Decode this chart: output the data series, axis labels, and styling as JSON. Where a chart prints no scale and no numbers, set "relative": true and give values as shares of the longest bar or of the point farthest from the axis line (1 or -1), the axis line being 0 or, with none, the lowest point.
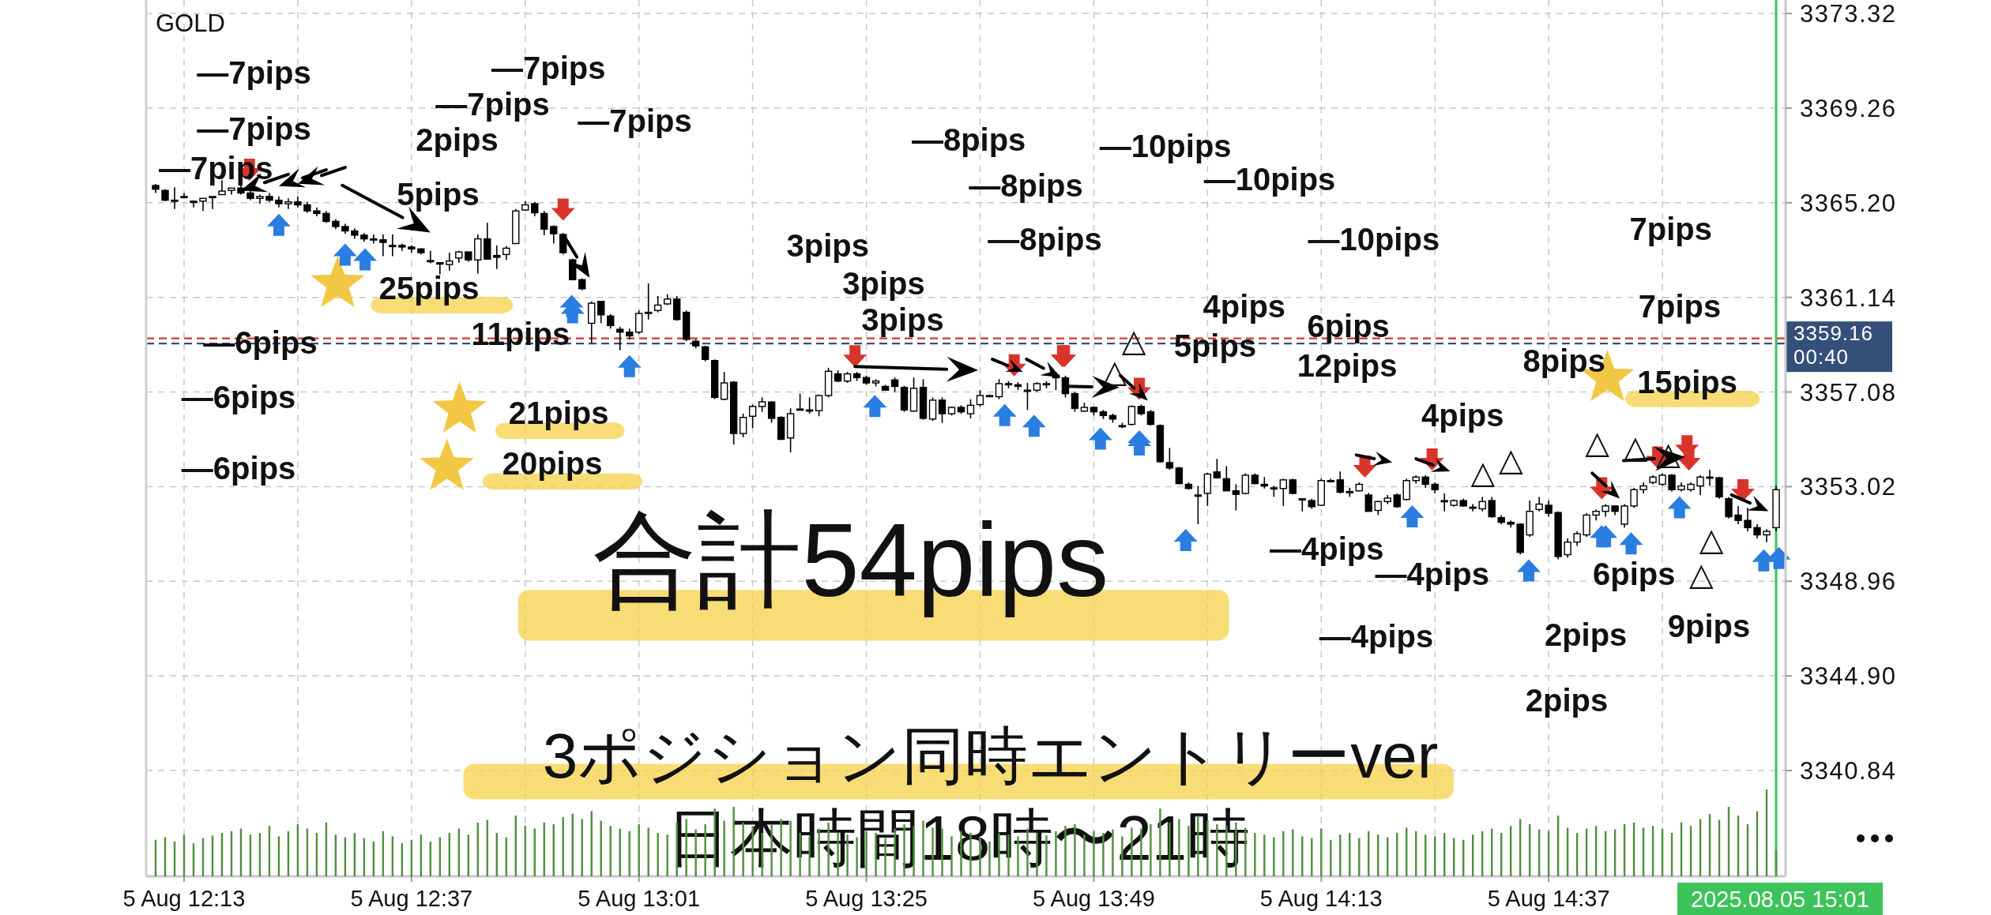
{
  "chart_data": [
    {
      "type": "candlestick",
      "title": "GOLD",
      "x": [
        "2025-08-05T12:10",
        "2025-08-05T12:11",
        "2025-08-05T12:12",
        "2025-08-05T12:13",
        "2025-08-05T12:14",
        "2025-08-05T12:15",
        "2025-08-05T12:16",
        "2025-08-05T12:17",
        "2025-08-05T12:18",
        "2025-08-05T12:19",
        "2025-08-05T12:20",
        "2025-08-05T12:21",
        "2025-08-05T12:22",
        "2025-08-05T12:23",
        "2025-08-05T12:24",
        "2025-08-05T12:25",
        "2025-08-05T12:26",
        "2025-08-05T12:27",
        "2025-08-05T12:28",
        "2025-08-05T12:29",
        "2025-08-05T12:30",
        "2025-08-05T12:31",
        "2025-08-05T12:32",
        "2025-08-05T12:33",
        "2025-08-05T12:34",
        "2025-08-05T12:35",
        "2025-08-05T12:36",
        "2025-08-05T12:37",
        "2025-08-05T12:38",
        "2025-08-05T12:39",
        "2025-08-05T12:40",
        "2025-08-05T12:41",
        "2025-08-05T12:42",
        "2025-08-05T12:43",
        "2025-08-05T12:44",
        "2025-08-05T12:45",
        "2025-08-05T12:46",
        "2025-08-05T12:47",
        "2025-08-05T12:48",
        "2025-08-05T12:49",
        "2025-08-05T12:50",
        "2025-08-05T12:51",
        "2025-08-05T12:52",
        "2025-08-05T12:53",
        "2025-08-05T12:54",
        "2025-08-05T12:55",
        "2025-08-05T12:56",
        "2025-08-05T12:57",
        "2025-08-05T12:58",
        "2025-08-05T12:59",
        "2025-08-05T13:00",
        "2025-08-05T13:01",
        "2025-08-05T13:02",
        "2025-08-05T13:03",
        "2025-08-05T13:04",
        "2025-08-05T13:05",
        "2025-08-05T13:06",
        "2025-08-05T13:07",
        "2025-08-05T13:08",
        "2025-08-05T13:09",
        "2025-08-05T13:10",
        "2025-08-05T13:11",
        "2025-08-05T13:12",
        "2025-08-05T13:13",
        "2025-08-05T13:14",
        "2025-08-05T13:15",
        "2025-08-05T13:16",
        "2025-08-05T13:17",
        "2025-08-05T13:18",
        "2025-08-05T13:19",
        "2025-08-05T13:20",
        "2025-08-05T13:21",
        "2025-08-05T13:22",
        "2025-08-05T13:23",
        "2025-08-05T13:24",
        "2025-08-05T13:25",
        "2025-08-05T13:26",
        "2025-08-05T13:27",
        "2025-08-05T13:28",
        "2025-08-05T13:29",
        "2025-08-05T13:30",
        "2025-08-05T13:31",
        "2025-08-05T13:32",
        "2025-08-05T13:33",
        "2025-08-05T13:34",
        "2025-08-05T13:35",
        "2025-08-05T13:36",
        "2025-08-05T13:37",
        "2025-08-05T13:38",
        "2025-08-05T13:39",
        "2025-08-05T13:40",
        "2025-08-05T13:41",
        "2025-08-05T13:42",
        "2025-08-05T13:43",
        "2025-08-05T13:44",
        "2025-08-05T13:45",
        "2025-08-05T13:46",
        "2025-08-05T13:47",
        "2025-08-05T13:48",
        "2025-08-05T13:49",
        "2025-08-05T13:50",
        "2025-08-05T13:51",
        "2025-08-05T13:52",
        "2025-08-05T13:53",
        "2025-08-05T13:54",
        "2025-08-05T13:55",
        "2025-08-05T13:56",
        "2025-08-05T13:57",
        "2025-08-05T13:58",
        "2025-08-05T13:59",
        "2025-08-05T14:00",
        "2025-08-05T14:01",
        "2025-08-05T14:02",
        "2025-08-05T14:03",
        "2025-08-05T14:04",
        "2025-08-05T14:05",
        "2025-08-05T14:06",
        "2025-08-05T14:07",
        "2025-08-05T14:08",
        "2025-08-05T14:09",
        "2025-08-05T14:10",
        "2025-08-05T14:11",
        "2025-08-05T14:12",
        "2025-08-05T14:13",
        "2025-08-05T14:14",
        "2025-08-05T14:15",
        "2025-08-05T14:16",
        "2025-08-05T14:17",
        "2025-08-05T14:18",
        "2025-08-05T14:19",
        "2025-08-05T14:20",
        "2025-08-05T14:21",
        "2025-08-05T14:22",
        "2025-08-05T14:23",
        "2025-08-05T14:24",
        "2025-08-05T14:25",
        "2025-08-05T14:26",
        "2025-08-05T14:27",
        "2025-08-05T14:28",
        "2025-08-05T14:29",
        "2025-08-05T14:30",
        "2025-08-05T14:31",
        "2025-08-05T14:32",
        "2025-08-05T14:33",
        "2025-08-05T14:34",
        "2025-08-05T14:35",
        "2025-08-05T14:36",
        "2025-08-05T14:37",
        "2025-08-05T14:38",
        "2025-08-05T14:39",
        "2025-08-05T14:40",
        "2025-08-05T14:41",
        "2025-08-05T14:42",
        "2025-08-05T14:43",
        "2025-08-05T14:44",
        "2025-08-05T14:45",
        "2025-08-05T14:46",
        "2025-08-05T14:47",
        "2025-08-05T14:48",
        "2025-08-05T14:49",
        "2025-08-05T14:50",
        "2025-08-05T14:51",
        "2025-08-05T14:52",
        "2025-08-05T14:53",
        "2025-08-05T14:54",
        "2025-08-05T14:55",
        "2025-08-05T14:56",
        "2025-08-05T14:57",
        "2025-08-05T14:58",
        "2025-08-05T14:59",
        "2025-08-05T15:00",
        "2025-08-05T15:01"
      ],
      "ohlc": [
        [
          3365.94,
          3366.01,
          3365.62,
          3365.78
        ],
        [
          3365.73,
          3365.78,
          3365.27,
          3365.31
        ],
        [
          3365.31,
          3365.86,
          3364.93,
          3365.31
        ],
        [
          3365.47,
          3365.62,
          3365.39,
          3365.47
        ],
        [
          3365.27,
          3365.27,
          3365.0,
          3365.21
        ],
        [
          3365.27,
          3365.39,
          3364.85,
          3365.39
        ],
        [
          3365.47,
          3365.47,
          3364.93,
          3365.47
        ],
        [
          3365.55,
          3366.17,
          3365.55,
          3365.7
        ],
        [
          3365.73,
          3365.83,
          3365.55,
          3365.83
        ],
        [
          3365.83,
          3365.94,
          3365.55,
          3365.62
        ],
        [
          3365.62,
          3365.7,
          3365.31,
          3365.39
        ],
        [
          3365.39,
          3365.55,
          3365.16,
          3365.47
        ],
        [
          3365.47,
          3365.62,
          3365.24,
          3365.31
        ],
        [
          3365.31,
          3365.47,
          3365.0,
          3365.16
        ],
        [
          3365.16,
          3365.39,
          3364.93,
          3365.24
        ],
        [
          3365.24,
          3365.47,
          3365.0,
          3365.11
        ],
        [
          3365.11,
          3365.24,
          3364.77,
          3364.85
        ],
        [
          3364.85,
          3365.0,
          3364.62,
          3364.74
        ],
        [
          3364.74,
          3364.85,
          3364.34,
          3364.4
        ],
        [
          3364.4,
          3364.5,
          3364.07,
          3364.18
        ],
        [
          3364.18,
          3364.3,
          3363.87,
          3363.99
        ],
        [
          3363.99,
          3364.1,
          3363.65,
          3363.81
        ],
        [
          3363.81,
          3363.9,
          3363.53,
          3363.65
        ],
        [
          3363.65,
          3363.84,
          3363.45,
          3363.61
        ],
        [
          3363.61,
          3363.84,
          3362.91,
          3363.5
        ],
        [
          3363.37,
          3363.84,
          3362.91,
          3363.37
        ],
        [
          3363.37,
          3363.45,
          3363.14,
          3363.3
        ],
        [
          3363.3,
          3363.37,
          3363.06,
          3363.22
        ],
        [
          3363.22,
          3363.25,
          3362.98,
          3363.06
        ],
        [
          3362.72,
          3363.14,
          3362.6,
          3362.72
        ],
        [
          3362.63,
          3362.63,
          3362.13,
          3362.57
        ],
        [
          3362.55,
          3363.06,
          3362.29,
          3362.7
        ],
        [
          3362.83,
          3363.14,
          3362.63,
          3363.09
        ],
        [
          3363.09,
          3363.09,
          3362.67,
          3362.75
        ],
        [
          3362.75,
          3363.84,
          3362.16,
          3363.65
        ],
        [
          3363.65,
          3364.34,
          3362.78,
          3362.78
        ],
        [
          3362.94,
          3363.37,
          3362.36,
          3362.86
        ],
        [
          3362.98,
          3363.34,
          3362.75,
          3363.25
        ],
        [
          3363.45,
          3364.93,
          3363.45,
          3364.85
        ],
        [
          3364.89,
          3365.27,
          3364.85,
          3365.11
        ],
        [
          3365.16,
          3365.24,
          3364.62,
          3364.77
        ],
        [
          3364.74,
          3364.85,
          3363.81,
          3364.07
        ],
        [
          3364.18,
          3364.23,
          3363.45,
          3363.87
        ],
        [
          3363.84,
          3363.9,
          3362.98,
          3363.06
        ],
        [
          3362.75,
          3362.8,
          3361.9,
          3361.9
        ],
        [
          3361.9,
          3361.95,
          3361.45,
          3361.51
        ],
        [
          3360.03,
          3360.97,
          3359.18,
          3360.89
        ],
        [
          3360.97,
          3360.97,
          3360.03,
          3360.39
        ],
        [
          3360.34,
          3360.42,
          3359.8,
          3359.93
        ],
        [
          3359.77,
          3359.88,
          3358.87,
          3359.65
        ],
        [
          3359.65,
          3359.8,
          3359.34,
          3359.49
        ],
        [
          3359.65,
          3360.58,
          3359.57,
          3360.45
        ],
        [
          3360.5,
          3361.74,
          3360.19,
          3360.5
        ],
        [
          3360.58,
          3361.2,
          3360.5,
          3360.81
        ],
        [
          3360.86,
          3361.28,
          3360.81,
          3361.07
        ],
        [
          3361.07,
          3361.2,
          3360.14,
          3360.19
        ],
        [
          3360.5,
          3360.58,
          3359.26,
          3359.34
        ],
        [
          3359.26,
          3359.34,
          3358.95,
          3359.06
        ],
        [
          3359.02,
          3359.06,
          3358.4,
          3358.48
        ],
        [
          3358.43,
          3358.48,
          3356.77,
          3356.85
        ],
        [
          3356.77,
          3357.94,
          3356.73,
          3357.47
        ],
        [
          3357.5,
          3357.55,
          3354.83,
          3355.3
        ],
        [
          3355.3,
          3356.15,
          3355.14,
          3355.99
        ],
        [
          3356.04,
          3356.54,
          3355.53,
          3356.46
        ],
        [
          3356.46,
          3356.85,
          3356.23,
          3356.66
        ],
        [
          3356.65,
          3356.69,
          3355.76,
          3355.95
        ],
        [
          3355.99,
          3356.04,
          3355.02,
          3355.05
        ],
        [
          3355.11,
          3356.38,
          3354.49,
          3356.15
        ],
        [
          3356.35,
          3357.01,
          3356.31,
          3356.35
        ],
        [
          3356.31,
          3356.85,
          3356.15,
          3356.31
        ],
        [
          3356.28,
          3356.97,
          3356.04,
          3356.93
        ],
        [
          3356.93,
          3358.12,
          3356.85,
          3357.97
        ],
        [
          3357.86,
          3358.01,
          3357.5,
          3357.55
        ],
        [
          3357.55,
          3357.94,
          3357.47,
          3357.86
        ],
        [
          3357.86,
          3357.94,
          3357.55,
          3357.7
        ],
        [
          3357.7,
          3357.78,
          3357.39,
          3357.47
        ],
        [
          3357.47,
          3357.63,
          3357.32,
          3357.55
        ],
        [
          3357.32,
          3357.39,
          3357.16,
          3357.16
        ],
        [
          3357.6,
          3357.7,
          3357.08,
          3357.32
        ],
        [
          3357.28,
          3357.35,
          3356.23,
          3356.31
        ],
        [
          3356.26,
          3357.7,
          3356.23,
          3357.24
        ],
        [
          3357.28,
          3357.63,
          3355.89,
          3355.95
        ],
        [
          3355.92,
          3356.85,
          3355.84,
          3356.73
        ],
        [
          3356.73,
          3356.85,
          3355.76,
          3356.15
        ],
        [
          3356.15,
          3356.46,
          3356.07,
          3356.42
        ],
        [
          3356.42,
          3356.51,
          3356.15,
          3356.23
        ],
        [
          3356.15,
          3356.77,
          3355.95,
          3356.51
        ],
        [
          3356.54,
          3357.16,
          3356.46,
          3356.93
        ],
        [
          3356.93,
          3356.97,
          3356.88,
          3356.93
        ],
        [
          3356.88,
          3357.63,
          3356.77,
          3357.44
        ],
        [
          3357.44,
          3357.55,
          3357.24,
          3357.39
        ],
        [
          3357.39,
          3357.5,
          3357.16,
          3357.32
        ],
        [
          3357.16,
          3357.47,
          3356.31,
          3357.16
        ],
        [
          3357.16,
          3357.5,
          3357.08,
          3357.44
        ],
        [
          3357.44,
          3357.55,
          3357.24,
          3357.39
        ],
        [
          3357.81,
          3357.94,
          3357.16,
          3357.69
        ],
        [
          3357.69,
          3357.78,
          3356.85,
          3357.01
        ],
        [
          3357.01,
          3357.08,
          3356.23,
          3356.38
        ],
        [
          3356.26,
          3356.62,
          3356.23,
          3356.42
        ],
        [
          3356.42,
          3356.46,
          3356.07,
          3356.23
        ],
        [
          3356.23,
          3356.31,
          3355.92,
          3356.07
        ],
        [
          3356.07,
          3356.15,
          3355.76,
          3355.92
        ],
        [
          3355.64,
          3355.76,
          3355.53,
          3355.64
        ],
        [
          3355.69,
          3356.51,
          3355.64,
          3356.46
        ],
        [
          3356.46,
          3356.54,
          3356.07,
          3356.15
        ],
        [
          3356.23,
          3356.31,
          3355.64,
          3355.69
        ],
        [
          3355.64,
          3355.69,
          3354.05,
          3354.09
        ],
        [
          3354.05,
          3354.68,
          3353.74,
          3353.82
        ],
        [
          3353.82,
          3353.87,
          3353.12,
          3353.15
        ],
        [
          3353.12,
          3353.2,
          3352.89,
          3352.94
        ],
        [
          3352.66,
          3353.05,
          3351.41,
          3352.66
        ],
        [
          3352.73,
          3353.62,
          3352.19,
          3353.56
        ],
        [
          3353.65,
          3354.21,
          3353.36,
          3353.4
        ],
        [
          3353.36,
          3353.9,
          3352.84,
          3352.84
        ],
        [
          3352.84,
          3353.12,
          3352.0,
          3352.69
        ],
        [
          3352.73,
          3353.59,
          3352.69,
          3353.51
        ],
        [
          3353.51,
          3353.59,
          3353.12,
          3353.15
        ],
        [
          3353.12,
          3353.43,
          3352.94,
          3353.05
        ],
        [
          3352.97,
          3353.05,
          3352.58,
          3352.97
        ],
        [
          3352.94,
          3353.36,
          3352.19,
          3353.31
        ],
        [
          3353.31,
          3353.36,
          3352.69,
          3352.73
        ],
        [
          3352.5,
          3352.5,
          3351.96,
          3352.5
        ],
        [
          3352.42,
          3352.5,
          3352.07,
          3352.16
        ],
        [
          3352.22,
          3353.36,
          3352.19,
          3353.28
        ],
        [
          3353.28,
          3353.36,
          3353.2,
          3353.28
        ],
        [
          3353.31,
          3353.67,
          3352.73,
          3352.78
        ],
        [
          3352.81,
          3352.97,
          3352.58,
          3352.81
        ],
        [
          3352.84,
          3353.2,
          3352.81,
          3353.12
        ],
        [
          3352.66,
          3352.75,
          3351.96,
          3351.96
        ],
        [
          3352.0,
          3352.42,
          3351.8,
          3352.38
        ],
        [
          3352.38,
          3352.66,
          3352.27,
          3352.53
        ],
        [
          3352.66,
          3352.73,
          3352.11,
          3352.16
        ],
        [
          3352.47,
          3353.36,
          3352.42,
          3353.28
        ],
        [
          3353.28,
          3353.51,
          3353.15,
          3353.43
        ],
        [
          3353.43,
          3353.51,
          3352.97,
          3353.12
        ],
        [
          3353.12,
          3353.2,
          3352.73,
          3352.89
        ],
        [
          3352.42,
          3352.73,
          3351.96,
          3352.42
        ],
        [
          3352.22,
          3352.47,
          3352.16,
          3352.42
        ],
        [
          3352.42,
          3352.5,
          3352.16,
          3352.19
        ],
        [
          3352.14,
          3352.27,
          3351.96,
          3352.14
        ],
        [
          3352.07,
          3352.58,
          3351.96,
          3352.38
        ],
        [
          3352.42,
          3352.58,
          3351.69,
          3351.73
        ],
        [
          3351.69,
          3351.8,
          3351.41,
          3351.49
        ],
        [
          3351.49,
          3351.57,
          3351.26,
          3351.41
        ],
        [
          3351.41,
          3351.45,
          3350.1,
          3350.2
        ],
        [
          3350.95,
          3352.42,
          3350.87,
          3351.96
        ],
        [
          3352.04,
          3352.58,
          3351.96,
          3352.27
        ],
        [
          3352.22,
          3352.42,
          3351.73,
          3351.88
        ],
        [
          3351.91,
          3351.96,
          3349.9,
          3350.02
        ],
        [
          3350.1,
          3350.8,
          3349.97,
          3350.64
        ],
        [
          3350.64,
          3351.1,
          3350.48,
          3351.0
        ],
        [
          3350.95,
          3351.88,
          3350.87,
          3351.8
        ],
        [
          3351.8,
          3352.04,
          3351.57,
          3351.96
        ],
        [
          3351.96,
          3352.27,
          3351.73,
          3352.19
        ],
        [
          3352.19,
          3352.22,
          3351.8,
          3351.96
        ],
        [
          3351.41,
          3352.27,
          3351.26,
          3352.19
        ],
        [
          3352.19,
          3352.97,
          3352.11,
          3352.89
        ],
        [
          3352.89,
          3353.2,
          3352.73,
          3353.05
        ],
        [
          3353.2,
          3353.51,
          3353.12,
          3353.43
        ],
        [
          3353.12,
          3353.59,
          3353.05,
          3353.51
        ],
        [
          3353.51,
          3353.56,
          3352.81,
          3352.89
        ],
        [
          3352.89,
          3353.2,
          3352.81,
          3353.05
        ],
        [
          3352.89,
          3353.2,
          3352.81,
          3353.12
        ],
        [
          3353.05,
          3353.51,
          3352.66,
          3353.43
        ],
        [
          3353.43,
          3353.74,
          3353.05,
          3353.43
        ],
        [
          3353.4,
          3353.43,
          3352.5,
          3352.58
        ],
        [
          3352.5,
          3352.58,
          3351.65,
          3351.73
        ],
        [
          3351.8,
          3352.19,
          3351.41,
          3351.57
        ],
        [
          3351.57,
          3352.11,
          3351.1,
          3351.26
        ],
        [
          3351.26,
          3351.41,
          3350.8,
          3350.95
        ],
        [
          3350.95,
          3351.2,
          3350.64,
          3351.1
        ],
        [
          3351.26,
          3353.05,
          3351.1,
          3352.89
        ]
      ],
      "xlim": [
        "2025-08-05T12:09",
        "2025-08-05T15:02"
      ],
      "xticks": [
        {
          "value": "2025-08-05T12:13",
          "label": null
        },
        {
          "value": "2025-08-05T12:25",
          "label": null
        },
        {
          "value": "2025-08-05T12:37",
          "label": null
        },
        {
          "value": "2025-08-05T12:49",
          "label": null
        },
        {
          "value": "2025-08-05T13:01",
          "label": null
        },
        {
          "value": "2025-08-05T13:13",
          "label": null
        },
        {
          "value": "2025-08-05T13:25",
          "label": null
        },
        {
          "value": "2025-08-05T13:37",
          "label": null
        },
        {
          "value": "2025-08-05T13:49",
          "label": null
        },
        {
          "value": "2025-08-05T14:01",
          "label": null
        },
        {
          "value": "2025-08-05T14:13",
          "label": null
        },
        {
          "value": "2025-08-05T14:25",
          "label": null
        },
        {
          "value": "2025-08-05T14:37",
          "label": null
        },
        {
          "value": "2025-08-05T14:49",
          "label": null
        }
      ],
      "tick_labels": "y",
      "ylim": [
        3336.3,
        3373.9
      ],
      "yticks": [
        3340.84,
        {
          "value": 3344.9,
          "label": "3344.90"
        },
        3348.96,
        3353.02,
        3357.08,
        3361.14,
        {
          "value": 3365.2,
          "label": "3365.20"
        },
        3369.26,
        3373.32
      ],
      "grid": true,
      "ref_lines": [
        {
          "axis": "y",
          "value": 3359.38,
          "color": "#d9342b",
          "line_style": "dashed"
        },
        {
          "axis": "y",
          "value": 3359.16,
          "label": "3359.16\n00:40",
          "color": "#34507a",
          "line_style": "dashed"
        },
        {
          "axis": "x",
          "value": "2025-08-05T15:01",
          "label": "2025.08.05 15:01",
          "color": "#3cc45a",
          "line_style": "solid"
        }
      ],
      "annotations": [
        "合計54pips",
        "3ポジション同時エントリーver",
        "日本時間18時〜21時",
        "—7pips",
        "—7pips",
        "—7pips",
        "—7pips",
        "—7pips",
        "2pips",
        "—7pips",
        "5pips",
        "25pips",
        "—6pips",
        "—6pips",
        "—6pips",
        "11pips",
        "21pips",
        "20pips",
        "—8pips",
        "—8pips",
        "—8pips",
        "3pips",
        "3pips",
        "3pips",
        "—10pips",
        "—10pips",
        "—10pips",
        "4pips",
        "5pips",
        "6pips",
        "12pips",
        "4pips",
        "8pips",
        "15pips",
        "7pips",
        "7pips",
        "—4pips",
        "—4pips",
        "—4pips",
        "6pips",
        "2pips",
        "2pips",
        "9pips",
        "△",
        "△",
        "△",
        "△",
        "△",
        "△",
        "△",
        "△",
        "△"
      ]
    },
    {
      "type": "bar",
      "relative": true,
      "tick_labels": "x",
      "color": "#4f8f3f",
      "xlim": [
        "2025-08-05T12:09",
        "2025-08-05T15:02"
      ],
      "xticks": [
        {
          "value": "2025-08-05T12:13",
          "label": "5 Aug 12:13"
        },
        {
          "value": "2025-08-05T12:37",
          "label": "5 Aug 12:37"
        },
        {
          "value": "2025-08-05T13:01",
          "label": "5 Aug 13:01"
        },
        {
          "value": "2025-08-05T13:25",
          "label": "5 Aug 13:25"
        },
        {
          "value": "2025-08-05T13:49",
          "label": "5 Aug 13:49"
        },
        {
          "value": "2025-08-05T14:13",
          "label": "5 Aug 14:13"
        },
        {
          "value": "2025-08-05T14:37",
          "label": "5 Aug 14:37"
        }
      ],
      "x": [
        "2025-08-05T12:10",
        "2025-08-05T12:11",
        "2025-08-05T12:12",
        "2025-08-05T12:13",
        "2025-08-05T12:14",
        "2025-08-05T12:15",
        "2025-08-05T12:16",
        "2025-08-05T12:17",
        "2025-08-05T12:18",
        "2025-08-05T12:19",
        "2025-08-05T12:20",
        "2025-08-05T12:21",
        "2025-08-05T12:22",
        "2025-08-05T12:23",
        "2025-08-05T12:24",
        "2025-08-05T12:25",
        "2025-08-05T12:26",
        "2025-08-05T12:27",
        "2025-08-05T12:28",
        "2025-08-05T12:29",
        "2025-08-05T12:30",
        "2025-08-05T12:31",
        "2025-08-05T12:32",
        "2025-08-05T12:33",
        "2025-08-05T12:34",
        "2025-08-05T12:35",
        "2025-08-05T12:36",
        "2025-08-05T12:37",
        "2025-08-05T12:38",
        "2025-08-05T12:39",
        "2025-08-05T12:40",
        "2025-08-05T12:41",
        "2025-08-05T12:42",
        "2025-08-05T12:43",
        "2025-08-05T12:44",
        "2025-08-05T12:45",
        "2025-08-05T12:46",
        "2025-08-05T12:47",
        "2025-08-05T12:48",
        "2025-08-05T12:49",
        "2025-08-05T12:50",
        "2025-08-05T12:51",
        "2025-08-05T12:52",
        "2025-08-05T12:53",
        "2025-08-05T12:54",
        "2025-08-05T12:55",
        "2025-08-05T12:56",
        "2025-08-05T12:57",
        "2025-08-05T12:58",
        "2025-08-05T12:59",
        "2025-08-05T13:00",
        "2025-08-05T13:01",
        "2025-08-05T13:02",
        "2025-08-05T13:03",
        "2025-08-05T13:04",
        "2025-08-05T13:05",
        "2025-08-05T13:06",
        "2025-08-05T13:07",
        "2025-08-05T13:08",
        "2025-08-05T13:09",
        "2025-08-05T13:10",
        "2025-08-05T13:11",
        "2025-08-05T13:12",
        "2025-08-05T13:13",
        "2025-08-05T13:14",
        "2025-08-05T13:15",
        "2025-08-05T13:16",
        "2025-08-05T13:17",
        "2025-08-05T13:18",
        "2025-08-05T13:19",
        "2025-08-05T13:20",
        "2025-08-05T13:21",
        "2025-08-05T13:22",
        "2025-08-05T13:23",
        "2025-08-05T13:24",
        "2025-08-05T13:25",
        "2025-08-05T13:26",
        "2025-08-05T13:27",
        "2025-08-05T13:28",
        "2025-08-05T13:29",
        "2025-08-05T13:30",
        "2025-08-05T13:31",
        "2025-08-05T13:32",
        "2025-08-05T13:33",
        "2025-08-05T13:34",
        "2025-08-05T13:35",
        "2025-08-05T13:36",
        "2025-08-05T13:37",
        "2025-08-05T13:38",
        "2025-08-05T13:39",
        "2025-08-05T13:40",
        "2025-08-05T13:41",
        "2025-08-05T13:42",
        "2025-08-05T13:43",
        "2025-08-05T13:44",
        "2025-08-05T13:45",
        "2025-08-05T13:46",
        "2025-08-05T13:47",
        "2025-08-05T13:48",
        "2025-08-05T13:49",
        "2025-08-05T13:50",
        "2025-08-05T13:51",
        "2025-08-05T13:52",
        "2025-08-05T13:53",
        "2025-08-05T13:54",
        "2025-08-05T13:55",
        "2025-08-05T13:56",
        "2025-08-05T13:57",
        "2025-08-05T13:58",
        "2025-08-05T13:59",
        "2025-08-05T14:00",
        "2025-08-05T14:01",
        "2025-08-05T14:02",
        "2025-08-05T14:03",
        "2025-08-05T14:04",
        "2025-08-05T14:05",
        "2025-08-05T14:06",
        "2025-08-05T14:07",
        "2025-08-05T14:08",
        "2025-08-05T14:09",
        "2025-08-05T14:10",
        "2025-08-05T14:11",
        "2025-08-05T14:12",
        "2025-08-05T14:13",
        "2025-08-05T14:14",
        "2025-08-05T14:15",
        "2025-08-05T14:16",
        "2025-08-05T14:17",
        "2025-08-05T14:18",
        "2025-08-05T14:19",
        "2025-08-05T14:20",
        "2025-08-05T14:21",
        "2025-08-05T14:22",
        "2025-08-05T14:23",
        "2025-08-05T14:24",
        "2025-08-05T14:25",
        "2025-08-05T14:26",
        "2025-08-05T14:27",
        "2025-08-05T14:28",
        "2025-08-05T14:29",
        "2025-08-05T14:30",
        "2025-08-05T14:31",
        "2025-08-05T14:32",
        "2025-08-05T14:33",
        "2025-08-05T14:34",
        "2025-08-05T14:35",
        "2025-08-05T14:36",
        "2025-08-05T14:37",
        "2025-08-05T14:38",
        "2025-08-05T14:39",
        "2025-08-05T14:40",
        "2025-08-05T14:41",
        "2025-08-05T14:42",
        "2025-08-05T14:43",
        "2025-08-05T14:44",
        "2025-08-05T14:45",
        "2025-08-05T14:46",
        "2025-08-05T14:47",
        "2025-08-05T14:48",
        "2025-08-05T14:49",
        "2025-08-05T14:50",
        "2025-08-05T14:51",
        "2025-08-05T14:52",
        "2025-08-05T14:53",
        "2025-08-05T14:54",
        "2025-08-05T14:55",
        "2025-08-05T14:56",
        "2025-08-05T14:57",
        "2025-08-05T14:58",
        "2025-08-05T14:59",
        "2025-08-05T15:00",
        "2025-08-05T15:01"
      ],
      "values": [
        0.42,
        0.45,
        0.4,
        0.48,
        0.38,
        0.44,
        0.47,
        0.5,
        0.52,
        0.55,
        0.48,
        0.5,
        0.58,
        0.46,
        0.52,
        0.6,
        0.55,
        0.5,
        0.62,
        0.48,
        0.45,
        0.5,
        0.44,
        0.4,
        0.52,
        0.46,
        0.38,
        0.42,
        0.48,
        0.4,
        0.45,
        0.5,
        0.55,
        0.48,
        0.62,
        0.65,
        0.5,
        0.45,
        0.7,
        0.58,
        0.55,
        0.62,
        0.6,
        0.68,
        0.72,
        0.66,
        0.75,
        0.64,
        0.58,
        0.55,
        0.52,
        0.6,
        0.56,
        0.5,
        0.48,
        0.62,
        0.66,
        0.54,
        0.6,
        0.78,
        0.64,
        0.8,
        0.62,
        0.58,
        0.5,
        0.6,
        0.66,
        0.64,
        0.5,
        0.46,
        0.55,
        0.62,
        0.5,
        0.48,
        0.45,
        0.52,
        0.5,
        0.44,
        0.55,
        0.6,
        0.58,
        0.64,
        0.56,
        0.55,
        0.46,
        0.52,
        0.5,
        0.44,
        0.4,
        0.5,
        0.48,
        0.46,
        0.55,
        0.5,
        0.47,
        0.52,
        0.58,
        0.6,
        0.48,
        0.52,
        0.5,
        0.54,
        0.46,
        0.56,
        0.55,
        0.6,
        0.78,
        0.62,
        0.66,
        0.58,
        0.7,
        0.64,
        0.6,
        0.58,
        0.62,
        0.56,
        0.5,
        0.48,
        0.45,
        0.52,
        0.54,
        0.46,
        0.44,
        0.55,
        0.42,
        0.48,
        0.5,
        0.44,
        0.52,
        0.48,
        0.45,
        0.5,
        0.56,
        0.52,
        0.48,
        0.46,
        0.5,
        0.44,
        0.42,
        0.48,
        0.52,
        0.55,
        0.5,
        0.58,
        0.66,
        0.6,
        0.54,
        0.52,
        0.7,
        0.56,
        0.5,
        0.55,
        0.58,
        0.52,
        0.54,
        0.6,
        0.62,
        0.56,
        0.58,
        0.55,
        0.5,
        0.62,
        0.58,
        0.66,
        0.72,
        0.65,
        0.8,
        0.7,
        0.6,
        0.75,
        1.0,
        0.3
      ]
    }
  ]
}
